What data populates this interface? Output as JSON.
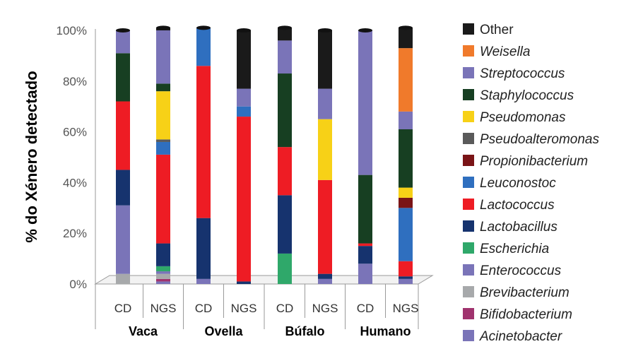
{
  "chart_data": {
    "type": "bar",
    "stacked": true,
    "ylabel": "% do Xénero detectado",
    "ylim": [
      0,
      100
    ],
    "yticks": [
      "0%",
      "20%",
      "40%",
      "60%",
      "80%",
      "100%"
    ],
    "ytick_values": [
      0,
      20,
      40,
      60,
      80,
      100
    ],
    "groups": [
      "Vaca",
      "Ovella",
      "Búfalo",
      "Humano"
    ],
    "categories": [
      "CD",
      "NGS",
      "CD",
      "NGS",
      "CD",
      "NGS",
      "CD",
      "NGS"
    ],
    "legend_position": "right",
    "series": [
      {
        "name": "Acinetobacter",
        "color": "#7a74b8",
        "italic": true,
        "values": [
          0,
          1.0,
          0,
          0,
          0,
          0,
          0,
          0
        ]
      },
      {
        "name": "Bifidobacterium",
        "color": "#a0336e",
        "italic": true,
        "values": [
          0,
          1.0,
          0,
          0,
          0,
          0,
          0,
          0
        ]
      },
      {
        "name": "Brevibacterium",
        "color": "#a7a9ab",
        "italic": true,
        "values": [
          4,
          2.0,
          0,
          0,
          0,
          0,
          0,
          0
        ]
      },
      {
        "name": "Enterococcus",
        "color": "#7a74b8",
        "italic": true,
        "values": [
          27,
          1.0,
          2,
          0,
          0,
          2,
          8,
          2
        ]
      },
      {
        "name": "Escherichia",
        "color": "#2fa86a",
        "italic": true,
        "values": [
          0,
          2.0,
          0,
          0,
          12,
          0,
          0,
          0
        ]
      },
      {
        "name": "Lactobacillus",
        "color": "#16336e",
        "italic": true,
        "values": [
          14,
          9.0,
          24,
          1,
          23,
          2,
          7,
          1
        ]
      },
      {
        "name": "Lactococcus",
        "color": "#ee1c24",
        "italic": true,
        "values": [
          27,
          35.0,
          60,
          65,
          19,
          37,
          1,
          6
        ]
      },
      {
        "name": "Leuconostoc",
        "color": "#2f6fbf",
        "italic": true,
        "values": [
          0,
          5.0,
          15,
          4,
          0,
          0,
          0,
          21
        ]
      },
      {
        "name": "Propionibacterium",
        "color": "#7a1416",
        "italic": true,
        "values": [
          0,
          0,
          0,
          0,
          0,
          0,
          0,
          4
        ]
      },
      {
        "name": "Pseudoalteromonas",
        "color": "#5a5a5a",
        "italic": true,
        "values": [
          0,
          1.0,
          0,
          0,
          0,
          0,
          0,
          0
        ]
      },
      {
        "name": "Pseudomonas",
        "color": "#f7d117",
        "italic": true,
        "values": [
          0,
          19.0,
          0,
          0,
          0,
          24,
          0,
          4
        ]
      },
      {
        "name": "Staphylococcus",
        "color": "#173f22",
        "italic": true,
        "values": [
          19,
          3.0,
          0,
          0,
          29,
          0,
          27,
          23
        ]
      },
      {
        "name": "Streptococcus",
        "color": "#7a74b8",
        "italic": true,
        "values": [
          9,
          21.0,
          0,
          7,
          13,
          12,
          57,
          7
        ]
      },
      {
        "name": "Weisella",
        "color": "#f07a2b",
        "italic": true,
        "values": [
          0,
          0,
          0,
          0,
          0,
          0,
          0,
          25
        ]
      },
      {
        "name": "Other",
        "color": "#1a1a1a",
        "italic": false,
        "values": [
          0,
          1.0,
          0,
          23,
          5,
          23,
          0,
          8
        ]
      }
    ]
  }
}
